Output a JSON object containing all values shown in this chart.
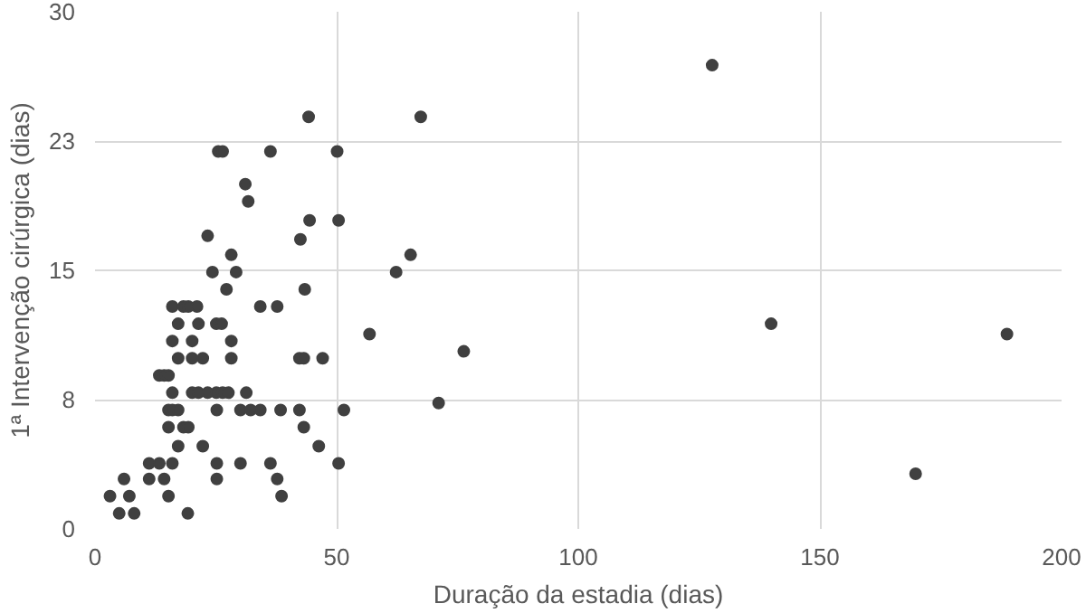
{
  "chart_data": {
    "type": "scatter",
    "xlabel": "Duração da estadia (dias)",
    "ylabel": "1ª Intervenção cirúrgica (dias)",
    "xlim": [
      0,
      200
    ],
    "xticks": [
      0,
      50,
      100,
      150,
      200
    ],
    "ylim": [
      0,
      30
    ],
    "yticks": [
      {
        "value": 0,
        "label": "0"
      },
      {
        "value": 7.5,
        "label": "8"
      },
      {
        "value": 15,
        "label": "15"
      },
      {
        "value": 22.5,
        "label": "23"
      },
      {
        "value": 30,
        "label": "30"
      }
    ],
    "grid": true,
    "marker": "circle",
    "series": [
      {
        "color": "#404040",
        "x": [
          3.1,
          5.0,
          8.1,
          7.1,
          6.0,
          11.2,
          14.3,
          15.2,
          11.2,
          13.3,
          16.0,
          19.2,
          17.2,
          15.2,
          18.3,
          19.3,
          15.2,
          16.0,
          17.2,
          22.3,
          25.2,
          25.2,
          30.1,
          36.3,
          37.7,
          38.6,
          50.4,
          46.3,
          43.2,
          25.2,
          30.1,
          32.2,
          34.2,
          38.4,
          42.3,
          51.5,
          16.0,
          20.1,
          21.4,
          23.3,
          25.1,
          26.4,
          27.6,
          31.3,
          13.3,
          14.3,
          15.2,
          17.2,
          20.1,
          22.3,
          28.2,
          42.3,
          43.2,
          47.1,
          16.0,
          20.1,
          28.2,
          17.2,
          21.4,
          25.1,
          26.2,
          16.0,
          18.3,
          19.3,
          21.1,
          34.2,
          37.7,
          27.2,
          43.4,
          24.3,
          29.2,
          28.2,
          42.5,
          23.3,
          44.4,
          50.4,
          31.7,
          31.1,
          25.5,
          26.4,
          36.3,
          50.1,
          44.2,
          127.7,
          67.4,
          65.3,
          62.3,
          56.8,
          76.3,
          139.9,
          188.7,
          71.1,
          169.8
        ],
        "values": [
          1.9,
          0.9,
          0.9,
          1.9,
          2.9,
          2.9,
          2.9,
          1.9,
          3.8,
          3.8,
          3.8,
          0.9,
          4.8,
          5.9,
          5.9,
          5.9,
          6.9,
          6.9,
          6.9,
          4.8,
          3.8,
          2.9,
          3.8,
          3.8,
          2.9,
          1.9,
          3.8,
          4.8,
          5.9,
          6.9,
          6.9,
          6.9,
          6.9,
          6.9,
          6.9,
          6.9,
          7.9,
          7.9,
          7.9,
          7.9,
          7.9,
          7.9,
          7.9,
          7.9,
          8.9,
          8.9,
          8.9,
          9.9,
          9.9,
          9.9,
          9.9,
          9.9,
          9.9,
          9.9,
          10.9,
          10.9,
          10.9,
          11.9,
          11.9,
          11.9,
          11.9,
          12.9,
          12.9,
          12.9,
          12.9,
          12.9,
          12.9,
          13.9,
          13.9,
          14.9,
          14.9,
          15.9,
          16.8,
          17.0,
          17.9,
          17.9,
          19.0,
          20.0,
          21.9,
          21.9,
          21.9,
          21.9,
          23.9,
          26.9,
          23.9,
          15.9,
          14.9,
          11.3,
          10.3,
          11.9,
          11.3,
          7.3,
          3.2
        ]
      }
    ]
  }
}
